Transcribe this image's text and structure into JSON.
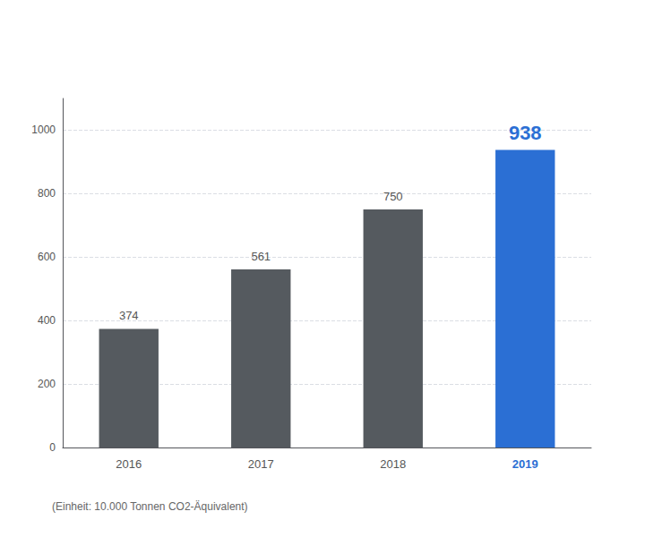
{
  "chart_data": {
    "type": "bar",
    "categories": [
      "2016",
      "2017",
      "2018",
      "2019"
    ],
    "values": [
      374,
      561,
      750,
      938
    ],
    "colors": [
      "#555A5F",
      "#555A5F",
      "#555A5F",
      "#2B6FD4"
    ],
    "ylim": [
      0,
      1100
    ],
    "yticks": [
      0,
      200,
      400,
      600,
      800,
      1000
    ],
    "grid": true,
    "data_labels": true,
    "annotations": [
      "(Einheit: 10.000 Tonnen CO2-Äquivalent)"
    ]
  }
}
